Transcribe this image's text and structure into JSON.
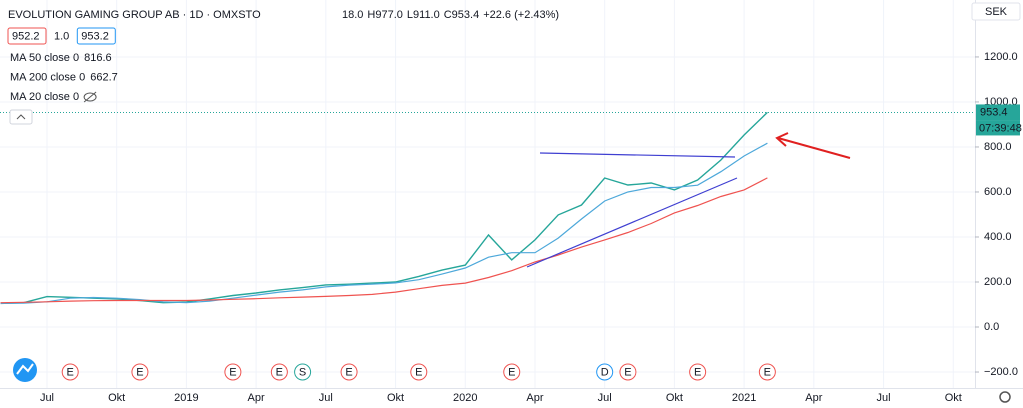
{
  "chart_data": {
    "type": "line",
    "title": "EVOLUTION GAMING GROUP AB · 1D · OMXSTO",
    "ohlc_text": [
      "18.0",
      "H977.0",
      "L911.0",
      "C953.4",
      "+22.6 (+2.43%)"
    ],
    "quote_boxes": [
      "952.2",
      "1.0",
      "953.2"
    ],
    "indicators": [
      {
        "name": "MA 50 close 0",
        "value": "816.6",
        "color": "#2196f3"
      },
      {
        "name": "MA 200 close 0",
        "value": "662.7",
        "color": "#ef5350"
      },
      {
        "name": "MA 20 close 0",
        "value": null,
        "color": "#b2b5be"
      }
    ],
    "currency": "SEK",
    "countdown": "07:39:48",
    "x": [
      "2018-05",
      "2018-06",
      "2018-07",
      "2018-08",
      "2018-09",
      "2018-10",
      "2018-11",
      "2018-12",
      "2019-01",
      "2019-02",
      "2019-03",
      "2019-04",
      "2019-05",
      "2019-06",
      "2019-07",
      "2019-08",
      "2019-09",
      "2019-10",
      "2019-11",
      "2019-12",
      "2020-01",
      "2020-02",
      "2020-03",
      "2020-04",
      "2020-05",
      "2020-06",
      "2020-07",
      "2020-08",
      "2020-09",
      "2020-10",
      "2020-11",
      "2020-12",
      "2021-01",
      "2021-02"
    ],
    "series": [
      {
        "name": "Price",
        "color": "#26a69a",
        "values": [
          105,
          108,
          135,
          132,
          128,
          125,
          118,
          108,
          111,
          125,
          140,
          151,
          165,
          175,
          187,
          190,
          195,
          200,
          225,
          253,
          275,
          409,
          298,
          387,
          498,
          542,
          662,
          631,
          640,
          609,
          653,
          742,
          853,
          953.4
        ]
      },
      {
        "name": "MA 50",
        "color": "#4da8da",
        "values": [
          105,
          106,
          112,
          128,
          131,
          128,
          122,
          112,
          108,
          115,
          128,
          142,
          155,
          165,
          178,
          186,
          190,
          196,
          210,
          235,
          262,
          310,
          330,
          330,
          395,
          480,
          560,
          600,
          620,
          620,
          630,
          690,
          760,
          816.6
        ]
      },
      {
        "name": "MA 200",
        "color": "#ef5350",
        "values": [
          108,
          110,
          112,
          115,
          117,
          118,
          118,
          118,
          118,
          120,
          123,
          126,
          130,
          133,
          136,
          140,
          145,
          155,
          170,
          185,
          195,
          220,
          250,
          289,
          320,
          355,
          387,
          420,
          460,
          507,
          540,
          580,
          609,
          662.7
        ]
      }
    ],
    "events": [
      {
        "x": "2018-08",
        "label": "E",
        "color": "#ef5350"
      },
      {
        "x": "2018-11",
        "label": "E",
        "color": "#ef5350"
      },
      {
        "x": "2019-03",
        "label": "E",
        "color": "#ef5350"
      },
      {
        "x": "2019-05",
        "label": "E",
        "color": "#ef5350"
      },
      {
        "x": "2019-06",
        "label": "S",
        "color": "#26a69a"
      },
      {
        "x": "2019-08",
        "label": "E",
        "color": "#ef5350"
      },
      {
        "x": "2019-11",
        "label": "E",
        "color": "#ef5350"
      },
      {
        "x": "2020-03",
        "label": "E",
        "color": "#ef5350"
      },
      {
        "x": "2020-07",
        "label": "D",
        "color": "#2196f3"
      },
      {
        "x": "2020-08",
        "label": "E",
        "color": "#ef5350"
      },
      {
        "x": "2020-11",
        "label": "E",
        "color": "#ef5350"
      },
      {
        "x": "2021-02",
        "label": "E",
        "color": "#ef5350"
      }
    ],
    "xlim": [
      "2018-05",
      "2021-11"
    ],
    "xticks": [
      {
        "value": "2018-07",
        "label": "Jul"
      },
      {
        "value": "2018-10",
        "label": "Okt"
      },
      {
        "value": "2019-01",
        "label": "2019"
      },
      {
        "value": "2019-04",
        "label": "Apr"
      },
      {
        "value": "2019-07",
        "label": "Jul"
      },
      {
        "value": "2019-10",
        "label": "Okt"
      },
      {
        "value": "2020-01",
        "label": "2020"
      },
      {
        "value": "2020-04",
        "label": "Apr"
      },
      {
        "value": "2020-07",
        "label": "Jul"
      },
      {
        "value": "2020-10",
        "label": "Okt"
      },
      {
        "value": "2021-01",
        "label": "2021"
      },
      {
        "value": "2021-04",
        "label": "Apr"
      },
      {
        "value": "2021-07",
        "label": "Jul"
      },
      {
        "value": "2021-10",
        "label": "Okt"
      }
    ],
    "ylim": [
      -271,
      1453
    ],
    "yticks": [
      {
        "value": -200,
        "label": "−200.0"
      },
      {
        "value": 0,
        "label": "0.0"
      },
      {
        "value": 200,
        "label": "200.0"
      },
      {
        "value": 400,
        "label": "400.0"
      },
      {
        "value": 600,
        "label": "600.0"
      },
      {
        "value": 800,
        "label": "800.0"
      },
      {
        "value": 1000,
        "label": "1000.0"
      },
      {
        "value": 1200,
        "label": "1200.0"
      }
    ]
  }
}
